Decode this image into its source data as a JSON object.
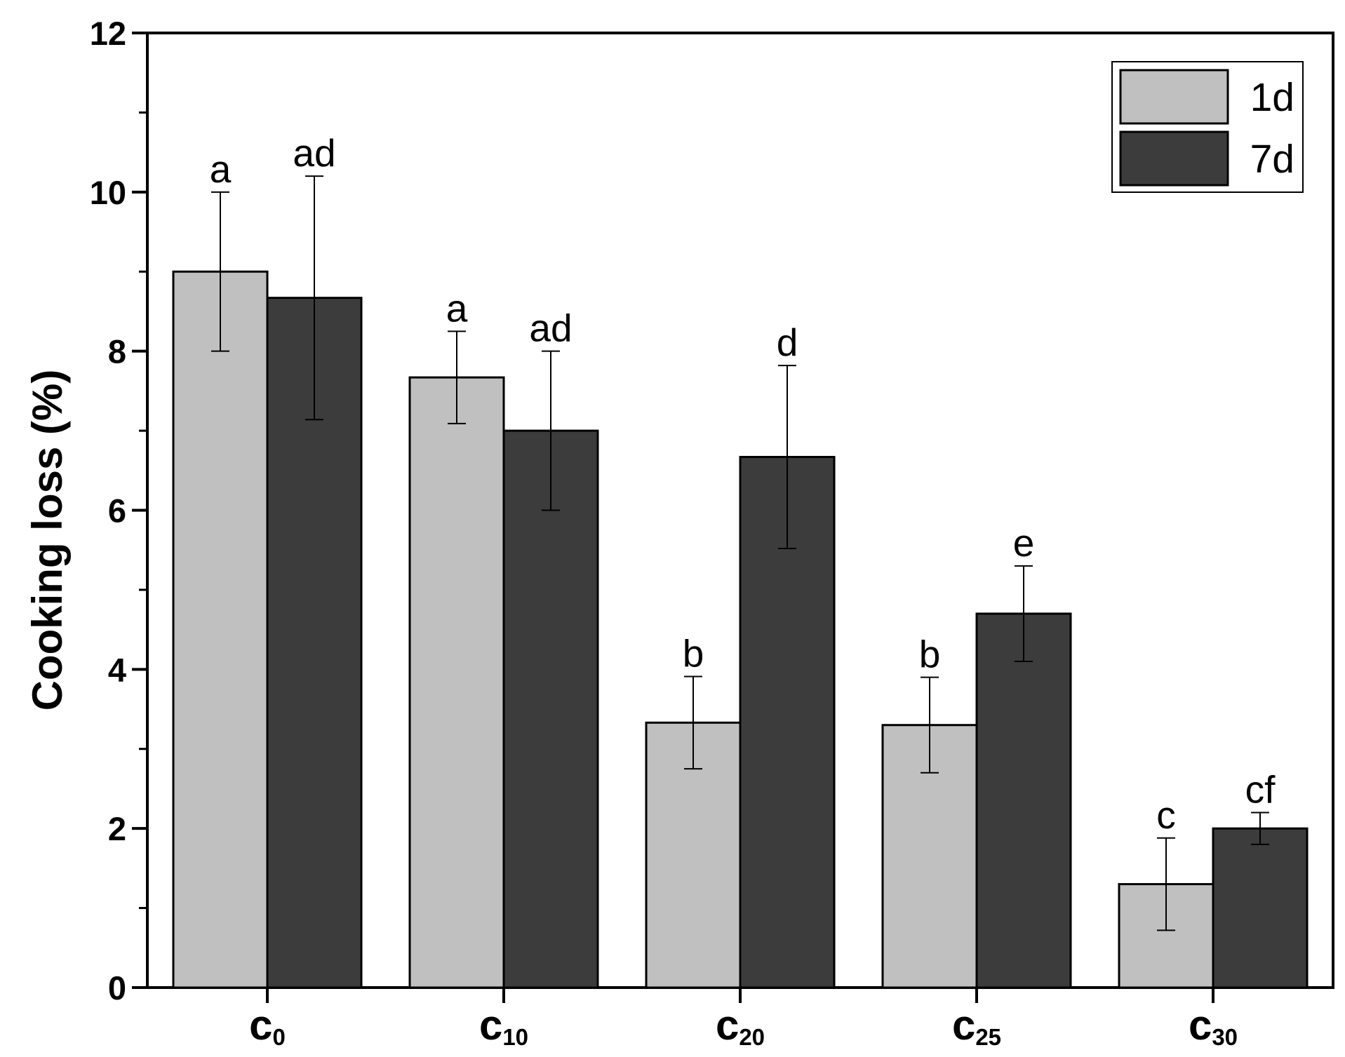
{
  "chart_data": {
    "type": "bar",
    "ylabel": "Cooking loss (%)",
    "xlabel": "",
    "ylim": [
      0,
      12
    ],
    "yticks": [
      0,
      2,
      4,
      6,
      8,
      10,
      12
    ],
    "grid": false,
    "legend_position": "top-right",
    "categories": [
      {
        "main": "c",
        "sub": "0"
      },
      {
        "main": "c",
        "sub": "10"
      },
      {
        "main": "c",
        "sub": "20"
      },
      {
        "main": "c",
        "sub": "25"
      },
      {
        "main": "c",
        "sub": "30"
      }
    ],
    "series": [
      {
        "name": "1d",
        "color": "#c0c0c0",
        "values": [
          9.0,
          7.67,
          3.33,
          3.3,
          1.3
        ],
        "errors": [
          1.0,
          0.58,
          0.58,
          0.6,
          0.58
        ],
        "labels": [
          "a",
          "a",
          "b",
          "b",
          "c"
        ]
      },
      {
        "name": "7d",
        "color": "#3c3c3c",
        "values": [
          8.67,
          7.0,
          6.67,
          4.7,
          2.0
        ],
        "errors": [
          1.53,
          1.0,
          1.15,
          0.6,
          0.2
        ],
        "labels": [
          "ad",
          "ad",
          "d",
          "e",
          "cf"
        ]
      }
    ]
  }
}
